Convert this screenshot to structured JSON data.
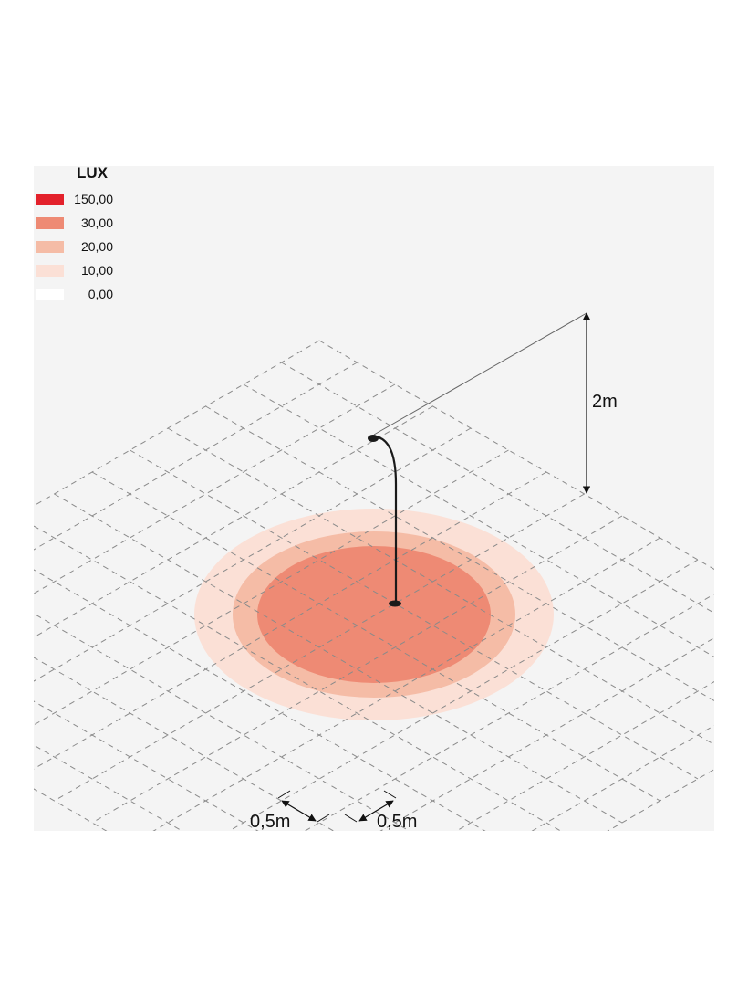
{
  "legend": {
    "title": "LUX",
    "items": [
      {
        "value": "150,00",
        "color": "#e3212b"
      },
      {
        "value": "30,00",
        "color": "#ee8a74"
      },
      {
        "value": "20,00",
        "color": "#f5bca6"
      },
      {
        "value": "10,00",
        "color": "#fbe0d6"
      },
      {
        "value": "0,00",
        "color": "#ffffff"
      }
    ]
  },
  "dimensions": {
    "height_label": "2m",
    "grid_x_label": "0,5m",
    "grid_y_label": "0,5m"
  },
  "colors": {
    "background": "#f4f4f4",
    "grid_line": "#8a8a8a",
    "fixture": "#1a1a1a"
  }
}
